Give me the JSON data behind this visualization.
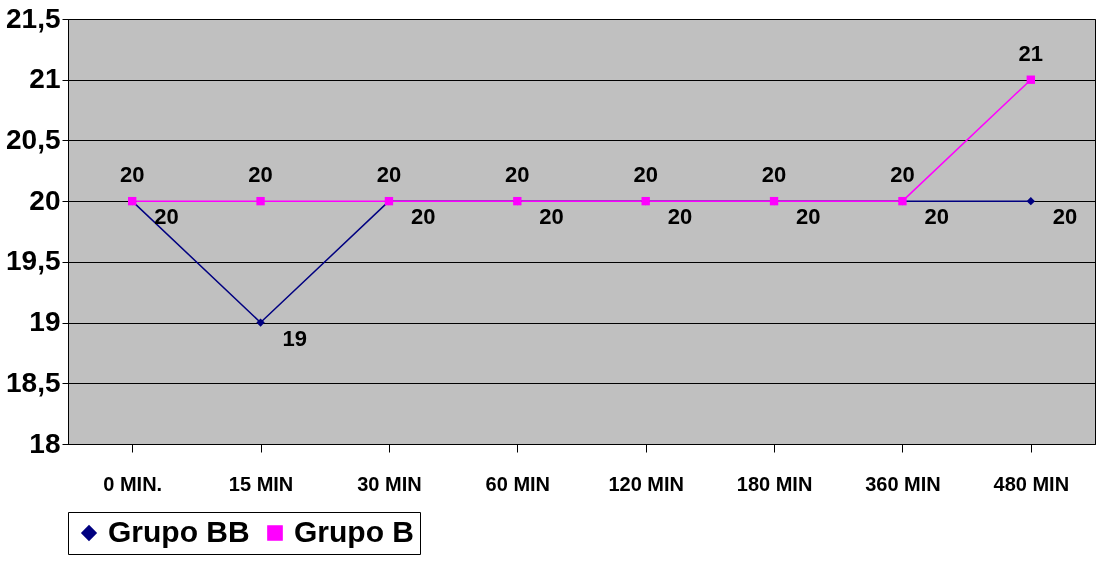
{
  "chart_data": {
    "type": "line",
    "categories": [
      "0 MIN.",
      "15 MIN",
      "30 MIN",
      "60 MIN",
      "120 MIN",
      "180 MIN",
      "360 MIN",
      "480 MIN"
    ],
    "series": [
      {
        "name": "Grupo BB",
        "color": "#000080",
        "marker": "diamond",
        "values": [
          20,
          19,
          20,
          20,
          20,
          20,
          20,
          20
        ]
      },
      {
        "name": "Grupo B",
        "color": "#ff00ff",
        "marker": "square",
        "values": [
          20,
          20,
          20,
          20,
          20,
          20,
          20,
          21
        ]
      }
    ],
    "ylim": [
      18,
      21.5
    ],
    "yticks": [
      18,
      {
        "value": 18.5,
        "label": "18,5"
      },
      19,
      {
        "value": 19.5,
        "label": "19,5"
      },
      20,
      {
        "value": 20.5,
        "label": "20,5"
      },
      21,
      {
        "value": 21.5,
        "label": "21,5"
      }
    ],
    "grid": "y",
    "legend": "bottom",
    "data_labels": true
  }
}
